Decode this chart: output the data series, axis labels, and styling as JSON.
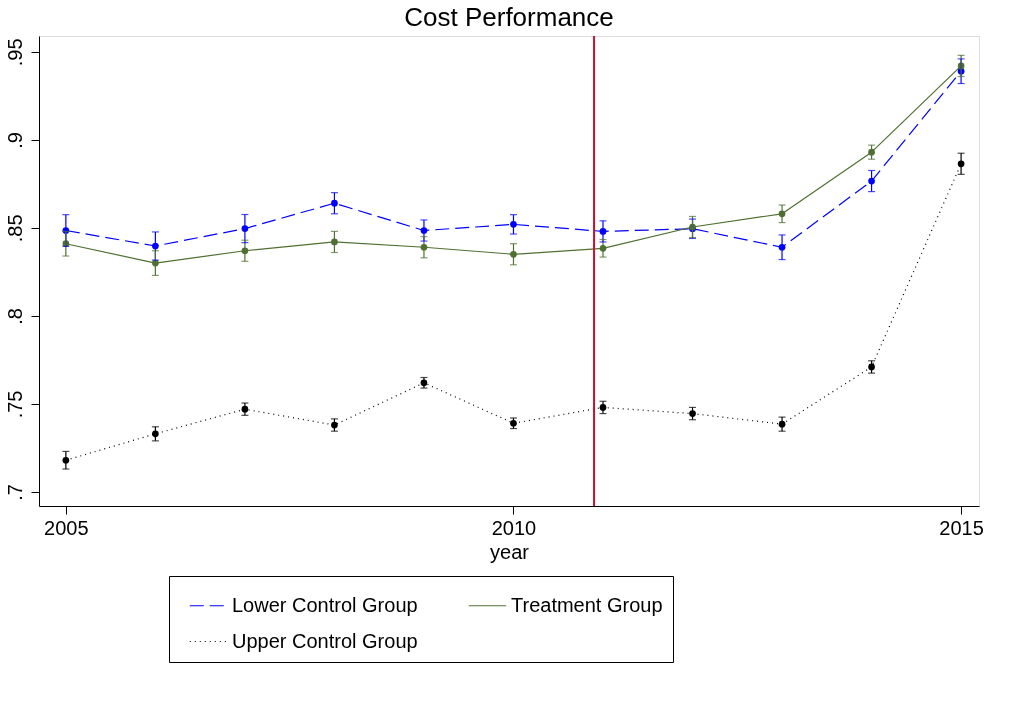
{
  "chart_data": {
    "type": "line",
    "title": "Cost Performance",
    "xlabel": "year",
    "x": [
      2005,
      2006,
      2007,
      2008,
      2009,
      2010,
      2011,
      2012,
      2013,
      2014,
      2015
    ],
    "series": [
      {
        "name": "Lower Control Group",
        "color": "#0000ff",
        "line_style": "dashed",
        "values": [
          0.8485,
          0.8397,
          0.8496,
          0.864,
          0.8485,
          0.852,
          0.848,
          0.8495,
          0.839,
          0.8766,
          0.939
        ],
        "errors": [
          0.009,
          0.008,
          0.008,
          0.006,
          0.006,
          0.0055,
          0.006,
          0.0055,
          0.007,
          0.006,
          0.007
        ]
      },
      {
        "name": "Treatment Group",
        "color": "#4f7032",
        "line_style": "solid",
        "values": [
          0.841,
          0.83,
          0.837,
          0.842,
          0.839,
          0.835,
          0.8384,
          0.8505,
          0.858,
          0.893,
          0.942
        ],
        "errors": [
          0.007,
          0.007,
          0.006,
          0.006,
          0.006,
          0.006,
          0.005,
          0.006,
          0.005,
          0.004,
          0.006
        ]
      },
      {
        "name": "Upper Control Group",
        "color": "#000000",
        "line_style": "dotted",
        "values": [
          0.718,
          0.733,
          0.747,
          0.738,
          0.762,
          0.739,
          0.748,
          0.7445,
          0.7385,
          0.771,
          0.8864
        ],
        "errors": [
          0.005,
          0.004,
          0.0035,
          0.0035,
          0.003,
          0.003,
          0.0035,
          0.0035,
          0.004,
          0.0035,
          0.006
        ]
      }
    ],
    "marker": "circle",
    "xlim": [
      2004.7,
      2015.2
    ],
    "xticks": [
      2005,
      2010,
      2015
    ],
    "ylim": [
      0.692,
      0.959
    ],
    "yticks": [
      {
        "value": 0.7,
        "label": ".7"
      },
      {
        "value": 0.75,
        "label": ".75"
      },
      {
        "value": 0.8,
        "label": ".8"
      },
      {
        "value": 0.85,
        "label": ".85"
      },
      {
        "value": 0.9,
        "label": ".9"
      },
      {
        "value": 0.95,
        "label": ".95"
      }
    ],
    "ref_lines": [
      {
        "axis": "x",
        "value": 2010.9,
        "color": "#c8102e"
      }
    ],
    "grid": false,
    "legend": "bottom"
  }
}
